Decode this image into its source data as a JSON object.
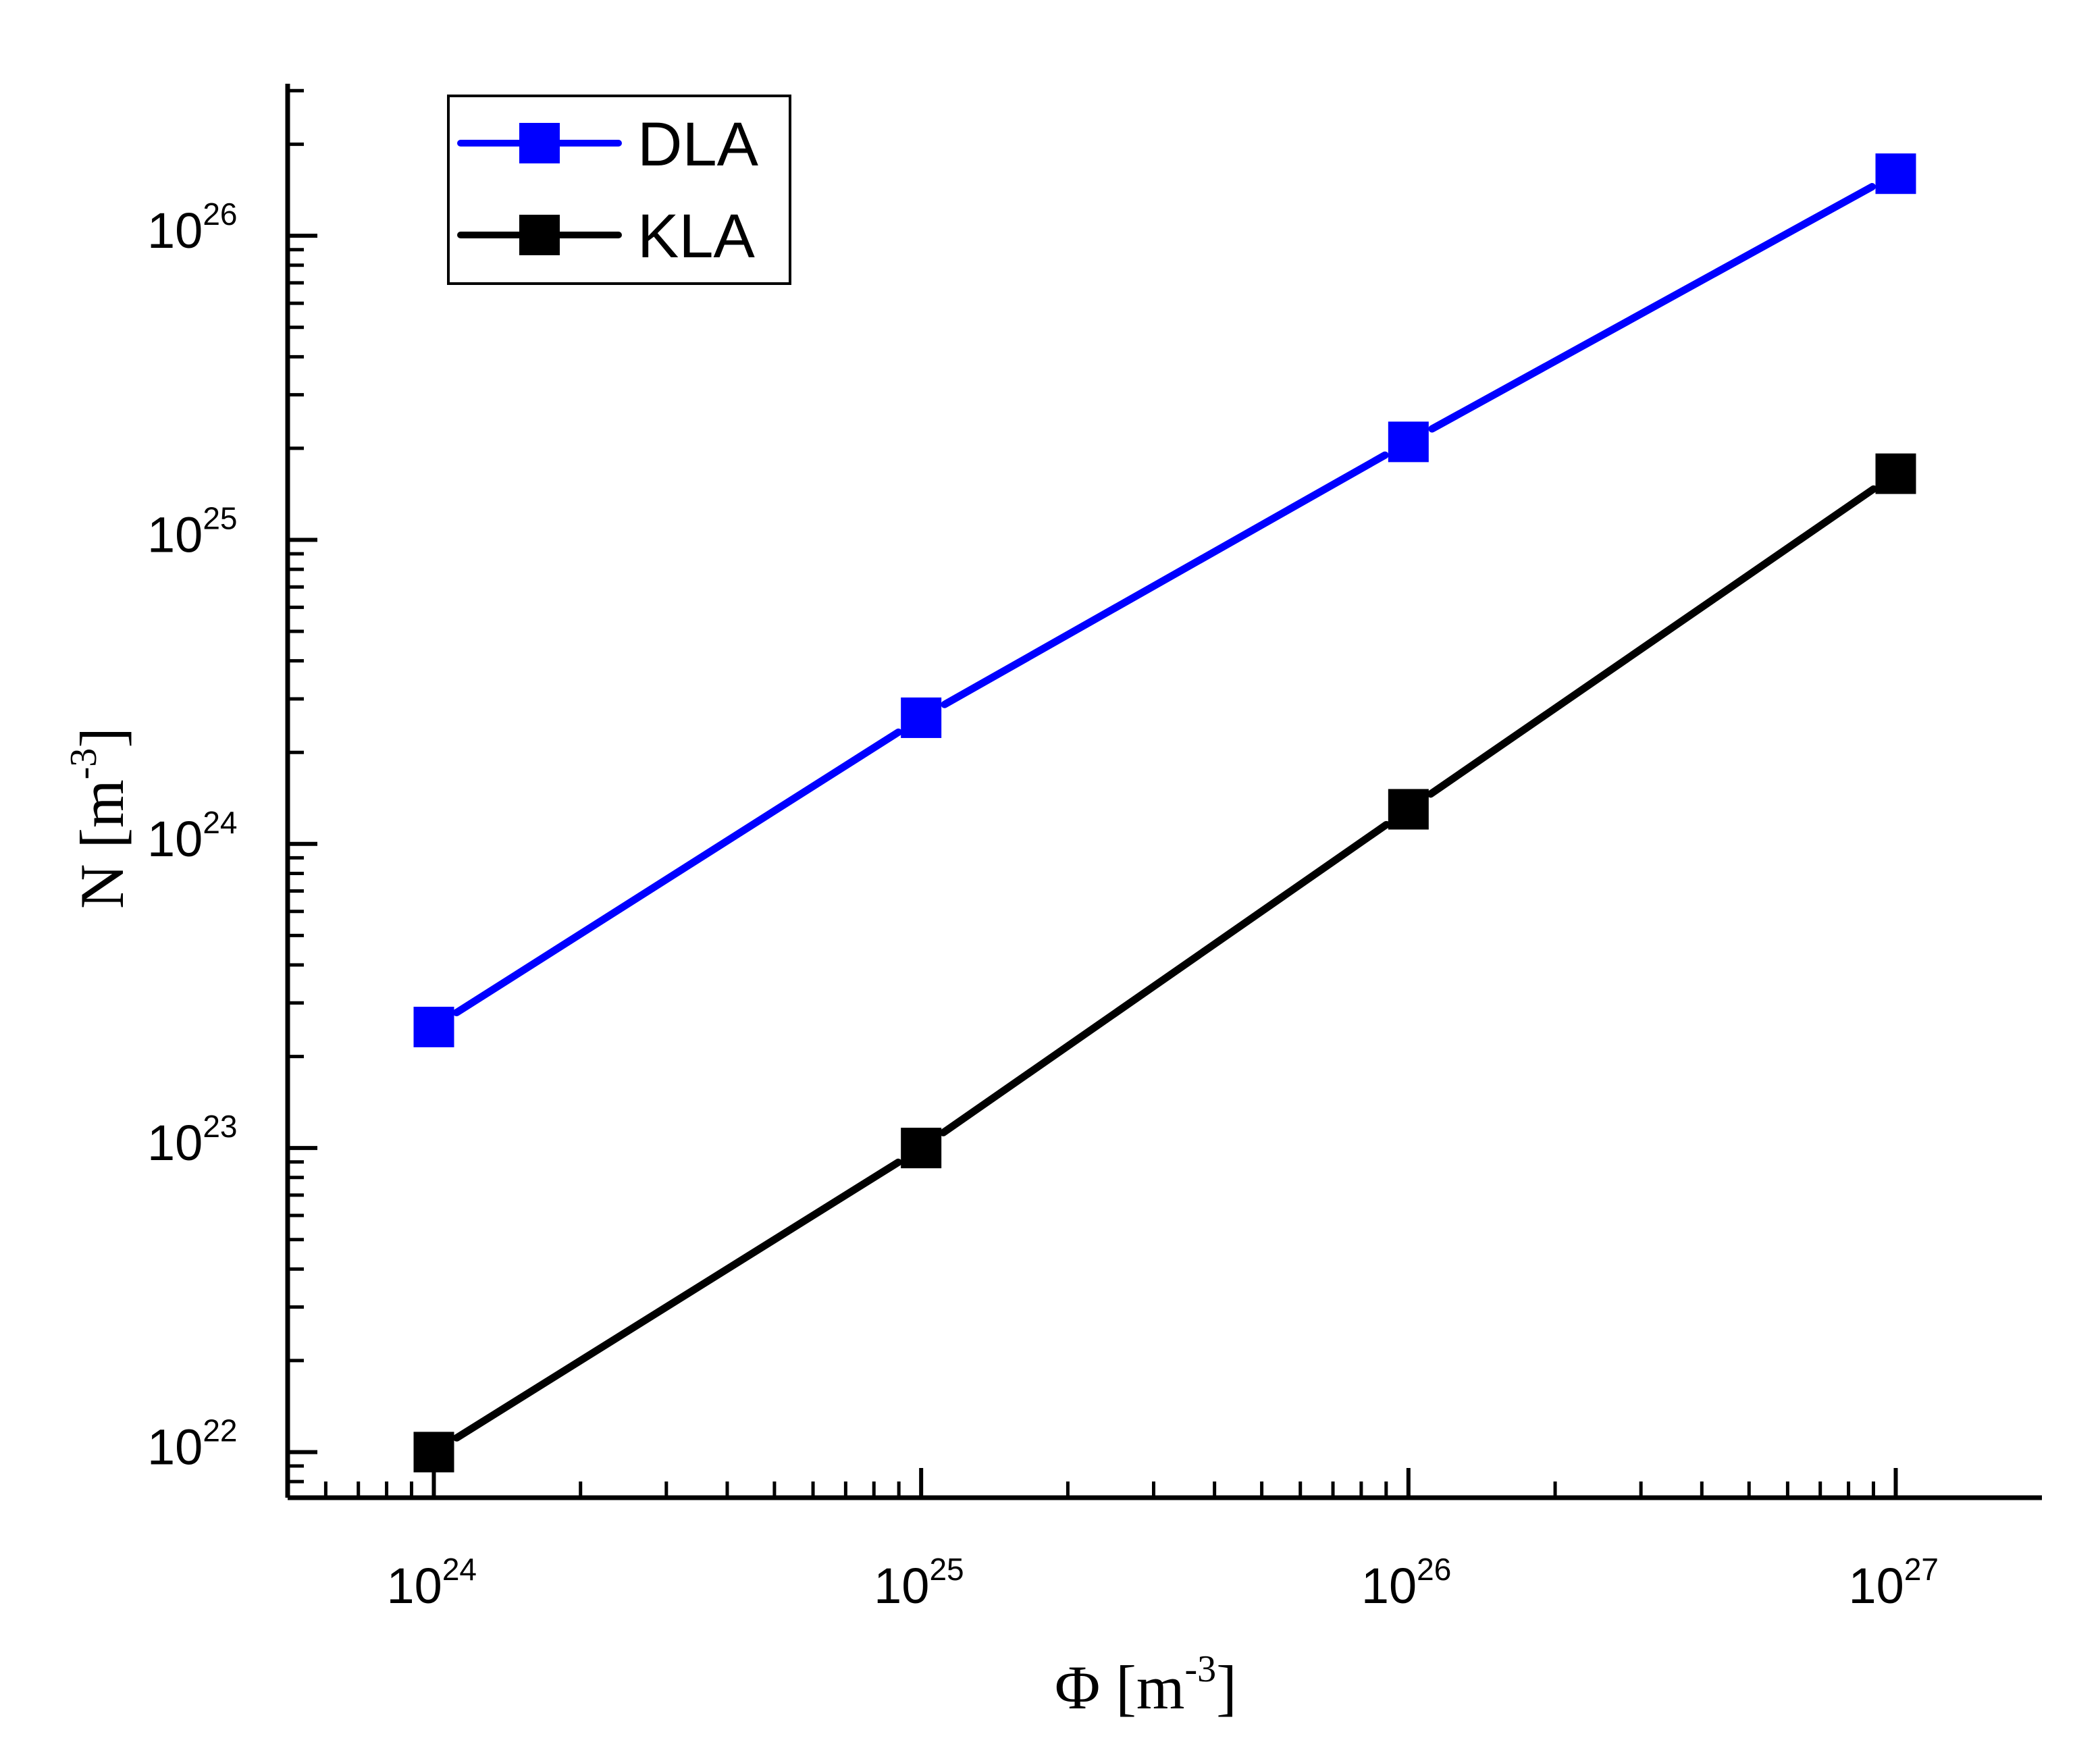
{
  "chart_data": {
    "type": "line",
    "title": "",
    "xscale": "log",
    "yscale": "log",
    "xlabel": {
      "base": "Φ [m",
      "exponent": "-3",
      "close": "]"
    },
    "ylabel": {
      "base": "N [m",
      "exponent": "-3",
      "close": "]"
    },
    "xlim_log10": [
      23.7,
      27.3
    ],
    "ylim_log10": [
      21.85,
      26.5
    ],
    "xticks": [
      {
        "log10": 24,
        "base": "10",
        "exponent": "24"
      },
      {
        "log10": 25,
        "base": "10",
        "exponent": "25"
      },
      {
        "log10": 26,
        "base": "10",
        "exponent": "26"
      },
      {
        "log10": 27,
        "base": "10",
        "exponent": "27"
      }
    ],
    "yticks": [
      {
        "log10": 22,
        "base": "10",
        "exponent": "22"
      },
      {
        "log10": 23,
        "base": "10",
        "exponent": "23"
      },
      {
        "log10": 24,
        "base": "10",
        "exponent": "24"
      },
      {
        "log10": 25,
        "base": "10",
        "exponent": "25"
      },
      {
        "log10": 26,
        "base": "10",
        "exponent": "26"
      }
    ],
    "x": [
      1e+24,
      1e+25,
      1e+26,
      1e+27
    ],
    "series": [
      {
        "name": "DLA",
        "color": "#0000ff",
        "marker": "square",
        "values": [
          2.5e+23,
          2.6e+24,
          2.1e+25,
          1.6e+26
        ]
      },
      {
        "name": "KLA",
        "color": "#000000",
        "marker": "square",
        "values": [
          1e+22,
          1e+23,
          1.3e+24,
          1.65e+25
        ]
      }
    ],
    "legend": {
      "position": "top-left",
      "entries": [
        "DLA",
        "KLA"
      ]
    }
  }
}
